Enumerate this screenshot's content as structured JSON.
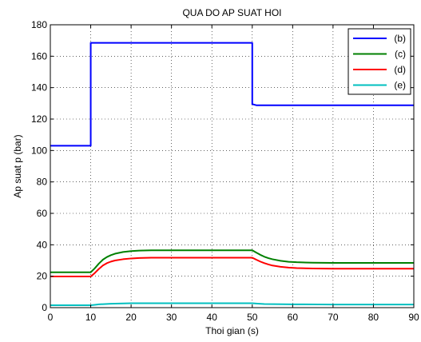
{
  "chart_data": {
    "type": "line",
    "title": "QUA DO AP SUAT HOI",
    "xlabel": "Thoi gian (s)",
    "ylabel": "Ap suat p (bar)",
    "xlim": [
      0,
      90
    ],
    "ylim": [
      0,
      180
    ],
    "xticks": [
      0,
      10,
      20,
      30,
      40,
      50,
      60,
      70,
      80,
      90
    ],
    "yticks": [
      0,
      20,
      40,
      60,
      80,
      100,
      120,
      140,
      160,
      180
    ],
    "grid": true,
    "legend_position": "top-right",
    "series": [
      {
        "name": "(b)",
        "color": "#0000ff",
        "x": [
          0,
          10,
          10,
          50,
          50,
          51,
          90
        ],
        "y": [
          103,
          103,
          168.5,
          168.5,
          129.5,
          128.8,
          128.8
        ]
      },
      {
        "name": "(c)",
        "color": "#008000",
        "x": [
          0,
          10,
          11,
          12,
          13,
          14,
          15,
          16,
          18,
          20,
          22,
          25,
          30,
          35,
          40,
          45,
          50,
          51,
          52,
          53,
          54,
          55,
          57,
          59,
          61,
          65,
          70,
          80,
          90
        ],
        "y": [
          22.5,
          22.5,
          25,
          28,
          30.5,
          32.2,
          33.4,
          34.3,
          35.4,
          36,
          36.3,
          36.5,
          36.5,
          36.5,
          36.5,
          36.5,
          36.5,
          35,
          33.6,
          32.4,
          31.5,
          30.8,
          29.8,
          29.2,
          28.9,
          28.6,
          28.5,
          28.5,
          28.5
        ]
      },
      {
        "name": "(d)",
        "color": "#ff0000",
        "x": [
          0,
          10,
          11,
          12,
          13,
          14,
          15,
          16,
          18,
          20,
          22,
          25,
          30,
          35,
          40,
          45,
          50,
          51,
          52,
          53,
          54,
          55,
          57,
          59,
          61,
          65,
          70,
          80,
          90
        ],
        "y": [
          19.8,
          19.8,
          22,
          24.6,
          26.8,
          28.3,
          29.3,
          30,
          30.8,
          31.3,
          31.6,
          31.8,
          31.8,
          31.8,
          31.8,
          31.8,
          31.8,
          30.5,
          29.3,
          28.3,
          27.5,
          26.8,
          26,
          25.5,
          25.2,
          24.9,
          24.8,
          24.8,
          24.8
        ]
      },
      {
        "name": "(e)",
        "color": "#00bfbf",
        "x": [
          0,
          10,
          11,
          12,
          15,
          18,
          20,
          30,
          40,
          50,
          51,
          53,
          60,
          70,
          80,
          90
        ],
        "y": [
          1.5,
          1.5,
          1.8,
          2.1,
          2.5,
          2.7,
          2.8,
          2.8,
          2.8,
          2.8,
          2.6,
          2.3,
          2.1,
          2,
          2,
          2
        ]
      }
    ]
  }
}
